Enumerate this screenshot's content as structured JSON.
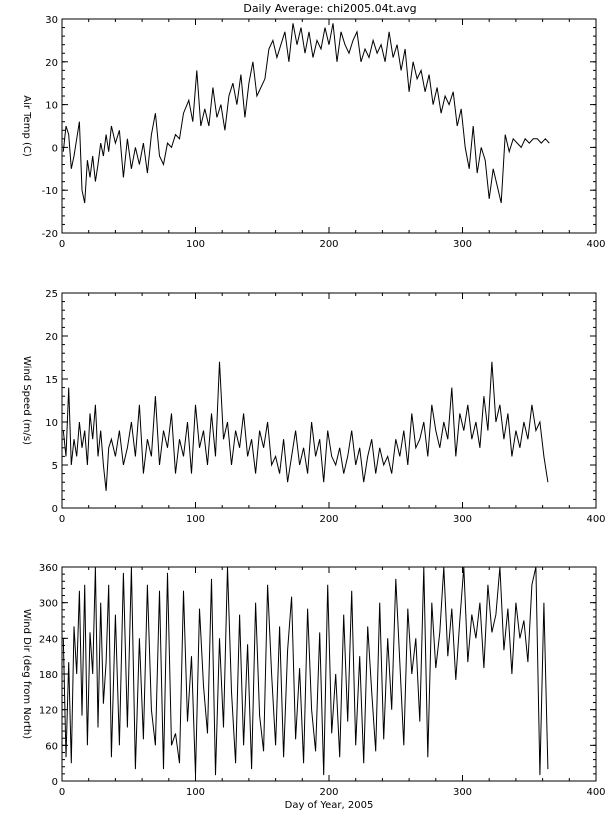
{
  "chart_data": [
    {
      "type": "line",
      "title": "Daily Average: chi2005.04t.avg",
      "xlabel": "",
      "ylabel": "Air Temp (C)",
      "xlim": [
        0,
        400
      ],
      "ylim": [
        -20,
        30
      ],
      "xticks": [
        0,
        100,
        200,
        300,
        400
      ],
      "yticks": [
        -20,
        -10,
        0,
        10,
        20,
        30
      ],
      "xminor": 20,
      "yminor": 2,
      "series": [
        {
          "x": [
            1,
            3,
            5,
            7,
            9,
            11,
            13,
            15,
            17,
            19,
            21,
            23,
            25,
            27,
            29,
            31,
            33,
            35,
            37,
            40,
            43,
            46,
            49,
            52,
            55,
            58,
            61,
            64,
            67,
            70,
            73,
            76,
            79,
            82,
            85,
            88,
            91,
            95,
            98,
            101,
            104,
            107,
            110,
            113,
            116,
            119,
            122,
            125,
            128,
            131,
            134,
            137,
            140,
            143,
            146,
            149,
            152,
            155,
            158,
            161,
            164,
            167,
            170,
            173,
            176,
            179,
            182,
            185,
            188,
            191,
            194,
            197,
            200,
            203,
            206,
            209,
            212,
            215,
            218,
            221,
            224,
            227,
            230,
            233,
            236,
            239,
            242,
            245,
            248,
            251,
            254,
            257,
            260,
            263,
            266,
            269,
            272,
            275,
            278,
            281,
            284,
            287,
            290,
            293,
            296,
            299,
            302,
            305,
            308,
            311,
            314,
            317,
            320,
            323,
            326,
            329,
            332,
            335,
            338,
            341,
            344,
            347,
            350,
            353,
            356,
            359,
            362,
            365
          ],
          "y": [
            -1,
            5,
            3,
            -5,
            -2,
            2,
            6,
            -10,
            -13,
            -3,
            -7,
            -2,
            -8,
            -4,
            1,
            -2,
            3,
            -1,
            5,
            1,
            4,
            -7,
            2,
            -5,
            0,
            -4,
            1,
            -6,
            3,
            8,
            -2,
            -4,
            1,
            0,
            3,
            2,
            8,
            11,
            6,
            18,
            5,
            9,
            5,
            14,
            7,
            10,
            4,
            12,
            15,
            10,
            17,
            7,
            15,
            20,
            12,
            14,
            16,
            23,
            25,
            21,
            24,
            27,
            20,
            29,
            24,
            28,
            22,
            27,
            21,
            25,
            23,
            28,
            24,
            29,
            20,
            27,
            24,
            22,
            25,
            27,
            20,
            23,
            21,
            25,
            22,
            24,
            20,
            27,
            21,
            24,
            18,
            23,
            13,
            20,
            16,
            18,
            13,
            17,
            10,
            14,
            8,
            12,
            10,
            13,
            5,
            9,
            0,
            -5,
            5,
            -6,
            0,
            -3,
            -12,
            -5,
            -9,
            -13,
            3,
            -1,
            2,
            1,
            0,
            2,
            1,
            2,
            2,
            1,
            2,
            1
          ]
        }
      ]
    },
    {
      "type": "line",
      "title": "",
      "xlabel": "",
      "ylabel": "Wind Speed (m/s)",
      "xlim": [
        0,
        400
      ],
      "ylim": [
        0,
        25
      ],
      "xticks": [
        0,
        100,
        200,
        300,
        400
      ],
      "yticks": [
        0,
        5,
        10,
        15,
        20,
        25
      ],
      "xminor": 20,
      "yminor": 1,
      "series": [
        {
          "x": [
            1,
            3,
            5,
            7,
            9,
            11,
            13,
            15,
            17,
            19,
            21,
            23,
            25,
            27,
            29,
            31,
            33,
            35,
            37,
            40,
            43,
            46,
            49,
            52,
            55,
            58,
            61,
            64,
            67,
            70,
            73,
            76,
            79,
            82,
            85,
            88,
            91,
            94,
            97,
            100,
            103,
            106,
            109,
            112,
            115,
            118,
            121,
            124,
            127,
            130,
            133,
            136,
            139,
            142,
            145,
            148,
            151,
            154,
            157,
            160,
            163,
            166,
            169,
            172,
            175,
            178,
            181,
            184,
            187,
            190,
            193,
            196,
            199,
            202,
            205,
            208,
            211,
            214,
            217,
            220,
            223,
            226,
            229,
            232,
            235,
            238,
            241,
            244,
            247,
            250,
            253,
            256,
            259,
            262,
            265,
            268,
            271,
            274,
            277,
            280,
            283,
            286,
            289,
            292,
            295,
            298,
            301,
            304,
            307,
            310,
            313,
            316,
            319,
            322,
            325,
            328,
            331,
            334,
            337,
            340,
            343,
            346,
            349,
            352,
            355,
            358,
            361,
            364
          ],
          "y": [
            9,
            6,
            14,
            5,
            8,
            6,
            10,
            7,
            9,
            5,
            11,
            8,
            12,
            6,
            9,
            5,
            2,
            7,
            8,
            6,
            9,
            5,
            7,
            10,
            6,
            12,
            4,
            8,
            6,
            13,
            5,
            9,
            7,
            11,
            4,
            8,
            6,
            10,
            4,
            12,
            7,
            9,
            5,
            11,
            6,
            17,
            8,
            10,
            5,
            9,
            7,
            11,
            6,
            8,
            4,
            9,
            7,
            10,
            5,
            6,
            4,
            8,
            3,
            6,
            9,
            5,
            7,
            4,
            10,
            6,
            8,
            3,
            9,
            6,
            5,
            7,
            4,
            6,
            9,
            5,
            7,
            3,
            6,
            8,
            4,
            7,
            5,
            6,
            4,
            8,
            6,
            9,
            5,
            11,
            7,
            8,
            10,
            6,
            12,
            9,
            7,
            10,
            8,
            14,
            6,
            11,
            9,
            12,
            8,
            10,
            7,
            13,
            9,
            17,
            10,
            12,
            8,
            11,
            6,
            9,
            7,
            10,
            8,
            12,
            9,
            10,
            6,
            3
          ]
        }
      ]
    },
    {
      "type": "line",
      "title": "",
      "xlabel": "Day of Year, 2005",
      "ylabel": "Wind Dir (deg from North)",
      "xlim": [
        0,
        400
      ],
      "ylim": [
        0,
        360
      ],
      "xticks": [
        0,
        100,
        200,
        300,
        400
      ],
      "yticks": [
        0,
        60,
        120,
        180,
        240,
        300,
        360
      ],
      "xminor": 20,
      "yminor": 12,
      "series": [
        {
          "x": [
            1,
            3,
            5,
            7,
            9,
            11,
            13,
            15,
            17,
            19,
            21,
            23,
            25,
            27,
            29,
            31,
            33,
            35,
            37,
            40,
            43,
            46,
            49,
            52,
            55,
            58,
            61,
            64,
            67,
            70,
            73,
            76,
            79,
            82,
            85,
            88,
            91,
            94,
            97,
            100,
            103,
            106,
            109,
            112,
            115,
            118,
            121,
            124,
            127,
            130,
            133,
            136,
            139,
            142,
            145,
            148,
            151,
            154,
            157,
            160,
            163,
            166,
            169,
            172,
            175,
            178,
            181,
            184,
            187,
            190,
            193,
            196,
            199,
            202,
            205,
            208,
            211,
            214,
            217,
            220,
            223,
            226,
            229,
            232,
            235,
            238,
            241,
            244,
            247,
            250,
            253,
            256,
            259,
            262,
            265,
            268,
            271,
            274,
            277,
            280,
            283,
            286,
            289,
            292,
            295,
            298,
            301,
            304,
            307,
            310,
            313,
            316,
            319,
            322,
            325,
            328,
            331,
            334,
            337,
            340,
            343,
            346,
            349,
            352,
            355,
            358,
            361,
            364
          ],
          "y": [
            240,
            40,
            200,
            30,
            260,
            180,
            320,
            110,
            330,
            60,
            250,
            180,
            360,
            90,
            300,
            130,
            200,
            330,
            40,
            280,
            60,
            350,
            90,
            360,
            20,
            240,
            70,
            330,
            120,
            60,
            320,
            20,
            350,
            60,
            80,
            30,
            320,
            100,
            210,
            10,
            290,
            160,
            80,
            340,
            10,
            240,
            90,
            360,
            150,
            30,
            280,
            60,
            230,
            20,
            300,
            110,
            50,
            330,
            180,
            60,
            260,
            40,
            220,
            310,
            70,
            190,
            30,
            290,
            120,
            50,
            250,
            10,
            330,
            80,
            180,
            40,
            280,
            100,
            320,
            60,
            210,
            30,
            260,
            150,
            50,
            300,
            70,
            240,
            120,
            340,
            200,
            60,
            290,
            180,
            240,
            100,
            360,
            40,
            300,
            190,
            250,
            360,
            210,
            290,
            170,
            270,
            360,
            200,
            280,
            240,
            300,
            190,
            330,
            250,
            280,
            360,
            220,
            290,
            180,
            300,
            240,
            270,
            200,
            330,
            360,
            10,
            300,
            20
          ]
        }
      ]
    }
  ]
}
